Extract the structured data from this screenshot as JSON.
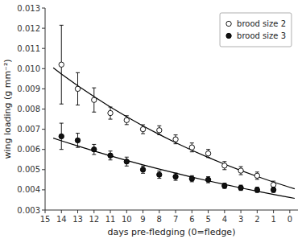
{
  "chart_data": {
    "type": "scatter",
    "xlabel": "days pre-fledging (0=fledge)",
    "ylabel": "wing loading (g mm⁻²)",
    "xlim": [
      15,
      -0.5
    ],
    "ylim": [
      0.003,
      0.013
    ],
    "xticks": [
      15,
      14,
      13,
      12,
      11,
      10,
      9,
      8,
      7,
      6,
      5,
      4,
      3,
      2,
      1,
      0
    ],
    "yticks": [
      0.003,
      0.004,
      0.005,
      0.006,
      0.007,
      0.008,
      0.009,
      {
        "value": 0.01,
        "label": "0.010"
      },
      0.011,
      0.012,
      0.013
    ],
    "grid": false,
    "legend": "upper right",
    "series": [
      {
        "type": "line",
        "color": "#000000",
        "line_style": "solid",
        "x": [
          -0.3,
          0,
          1,
          2,
          3,
          4,
          5,
          6,
          7,
          8,
          9,
          10,
          11,
          12,
          13,
          14,
          14.5
        ],
        "values": [
          0.0040502,
          0.0041254,
          0.0043864,
          0.0046639,
          0.004959,
          0.0052727,
          0.0056062,
          0.0059609,
          0.006338,
          0.006739,
          0.0071653,
          0.0076186,
          0.0081005,
          0.008613,
          0.0091579,
          0.0097372,
          0.0100405
        ]
      },
      {
        "type": "line",
        "color": "#000000",
        "line_style": "solid",
        "x": [
          -0.3,
          0,
          1,
          2,
          3,
          4,
          5,
          6,
          7,
          8,
          9,
          10,
          11,
          12,
          13,
          14,
          14.5
        ],
        "values": [
          0.0035774,
          0.0036217,
          0.0037731,
          0.003931,
          0.0040954,
          0.0042667,
          0.0044452,
          0.0046311,
          0.0048248,
          0.0050266,
          0.0052369,
          0.0054559,
          0.0056841,
          0.0059219,
          0.0061696,
          0.0064276,
          0.0065607
        ]
      },
      {
        "name": "brood size 2",
        "type": "scatter",
        "marker": "circle-open",
        "color": "#000000",
        "x": [
          14,
          13,
          12,
          11,
          10,
          9,
          8,
          7,
          6,
          5,
          4,
          3,
          2,
          1
        ],
        "values": [
          0.0102,
          0.009,
          0.00845,
          0.0078,
          0.00745,
          0.007,
          0.00695,
          0.0065,
          0.0061,
          0.0058,
          0.0052,
          0.00495,
          0.0047,
          0.00425
        ],
        "yerr_lower": [
          0.00195,
          0.0008,
          0.0006,
          0.0003,
          0.00022,
          0.00022,
          0.00022,
          0.00022,
          0.00022,
          0.0002,
          0.0002,
          0.0002,
          0.00018,
          0.00018
        ],
        "yerr_upper": [
          0.00195,
          0.0008,
          0.0006,
          0.0003,
          0.00022,
          0.00022,
          0.00022,
          0.00022,
          0.00022,
          0.0002,
          0.0002,
          0.0002,
          0.00018,
          0.00018
        ]
      },
      {
        "name": "brood size 3",
        "type": "scatter",
        "marker": "circle",
        "color": "#111111",
        "x": [
          14,
          13,
          12,
          11,
          10,
          9,
          8,
          7,
          6,
          5,
          4,
          3,
          2,
          1
        ],
        "values": [
          0.00665,
          0.00645,
          0.006,
          0.0057,
          0.0054,
          0.005,
          0.00475,
          0.00465,
          0.00455,
          0.0045,
          0.0042,
          0.0041,
          0.004,
          0.004
        ],
        "yerr_lower": [
          0.00065,
          0.00035,
          0.00025,
          0.00022,
          0.00022,
          0.00018,
          0.00018,
          0.00018,
          0.00015,
          0.00015,
          0.00013,
          0.00013,
          0.00013,
          0.00013
        ],
        "yerr_upper": [
          0.00065,
          0.00035,
          0.00025,
          0.00022,
          0.00022,
          0.00018,
          0.00018,
          0.00018,
          0.00015,
          0.00015,
          0.00013,
          0.00013,
          0.00013,
          0.00013
        ]
      }
    ]
  }
}
